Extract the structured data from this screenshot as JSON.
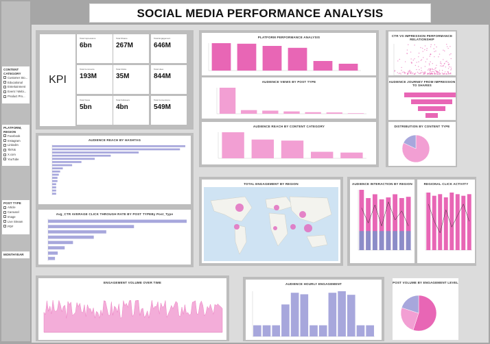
{
  "title": "SOCIAL MEDIA PERFORMANCE ANALYSIS",
  "colors": {
    "pink": "#e866b5",
    "light_pink": "#f29fd3",
    "lavender": "#a7a7dc",
    "purple": "#8c8cc8",
    "map_water": "#cfe3f3",
    "map_land": "#f3f3ee"
  },
  "slicers": {
    "content_category": {
      "title": "CONTENT CATEGORY",
      "items": [
        "Customer Sto...",
        "Educational",
        "Entertainment",
        "Event / Webi...",
        "Product Pro..."
      ]
    },
    "platform": {
      "title": "PLATFORM, REGION",
      "items": [
        "Facebook",
        "Instagram",
        "LinkedIn",
        "TikTok",
        "X.com",
        "YouTube"
      ]
    },
    "post_type": {
      "title": "POST TYPE",
      "items": [
        "Article",
        "Carousel",
        "Image",
        "Live Stream",
        "PDF"
      ]
    },
    "monthyear": {
      "title": "MONTHYEAR"
    }
  },
  "kpi": {
    "label": "KPI",
    "cards": [
      {
        "label": "Total Impressions",
        "value": "6bn"
      },
      {
        "label": "Total Shares",
        "value": "267M"
      },
      {
        "label": "Total Engagement",
        "value": "646M"
      },
      {
        "label": "Total Comments",
        "value": "193M"
      },
      {
        "label": "Total Clicks",
        "value": "35M"
      },
      {
        "label": "Total Likes",
        "value": "844M"
      },
      {
        "label": "Total Views",
        "value": "5bn"
      },
      {
        "label": "Total Followers",
        "value": "4bn"
      },
      {
        "label": "Total Conversions",
        "value": "549M"
      }
    ]
  },
  "charts": {
    "platform_performance": {
      "title": "PLATFORM PERFORMANCE ANALYSIS"
    },
    "views_by_post_type": {
      "title": "AUDIENCE VIEWS BY POST TYPE"
    },
    "reach_by_category": {
      "title": "AUDIENCE REACH BY CONTENT CATEGORY"
    },
    "ctr_vs_impression": {
      "title": "CTR VS IMPRESSION PERFORMANCE RELATIONSHIP"
    },
    "journey": {
      "title": "AUDIENCE JOURNEY FROM IMPRESSION TO SHARES"
    },
    "distribution": {
      "title": "DISTRIBUTION BY CONTENT TYPE"
    },
    "reach_by_hashtag": {
      "title": "AUDIENCE REACH BY HASHTAG"
    },
    "ctr_by_post_type": {
      "title": "Avg_CTR AVERAGE CLICK THROUGH RATE BY POST TYPEBy Post_Type"
    },
    "engagement_by_region": {
      "title": "TOTAL ENGAGEMENT BY REGION"
    },
    "interaction_by_region": {
      "title": "AUDIENCE INTERACTION BY REGION"
    },
    "regional_click": {
      "title": "REGIONAL CLICK ACTIVITY"
    },
    "engagement_volume": {
      "title": "ENGAGEMENT VOLUME OVER TIME"
    },
    "hourly_engagement": {
      "title": "AUDIENCE HOURLY ENGAGEMENT"
    },
    "post_volume": {
      "title": "POST VOLUME BY ENGAGEMENT LEVEL"
    }
  },
  "chart_data": [
    {
      "type": "bar",
      "id": "platform_performance",
      "values": [
        100,
        98,
        90,
        83,
        35,
        25
      ]
    },
    {
      "type": "bar",
      "id": "views_by_post_type",
      "values": [
        100,
        14,
        12,
        9,
        6,
        5,
        2
      ]
    },
    {
      "type": "bar",
      "id": "reach_by_category",
      "values": [
        100,
        72,
        68,
        25,
        22
      ]
    },
    {
      "type": "bar",
      "id": "interaction_by_region",
      "series": [
        {
          "values": [
            95,
            82,
            88,
            80,
            83,
            88,
            82,
            84
          ]
        },
        {
          "values": [
            30,
            30,
            30,
            30,
            30,
            30,
            30,
            30
          ]
        }
      ]
    },
    {
      "type": "bar",
      "id": "regional_click",
      "values": [
        72,
        68,
        70,
        66,
        72,
        70,
        68,
        70
      ]
    },
    {
      "type": "bar",
      "id": "reach_by_hashtag",
      "values": [
        100,
        96,
        65,
        44,
        32,
        22,
        15,
        8,
        6,
        5,
        4,
        4,
        3,
        3,
        3,
        3
      ]
    },
    {
      "type": "bar",
      "id": "ctr_by_post_type",
      "values": [
        100,
        62,
        42,
        33,
        18,
        12,
        7,
        5
      ]
    },
    {
      "type": "bar",
      "id": "hourly_engagement",
      "values": [
        22,
        22,
        22,
        63,
        86,
        83,
        22,
        22,
        86,
        89,
        82,
        22,
        22
      ]
    },
    {
      "type": "pie",
      "id": "distribution",
      "values": [
        82,
        18
      ]
    },
    {
      "type": "pie",
      "id": "post_volume",
      "values": [
        55,
        25,
        20
      ]
    }
  ]
}
